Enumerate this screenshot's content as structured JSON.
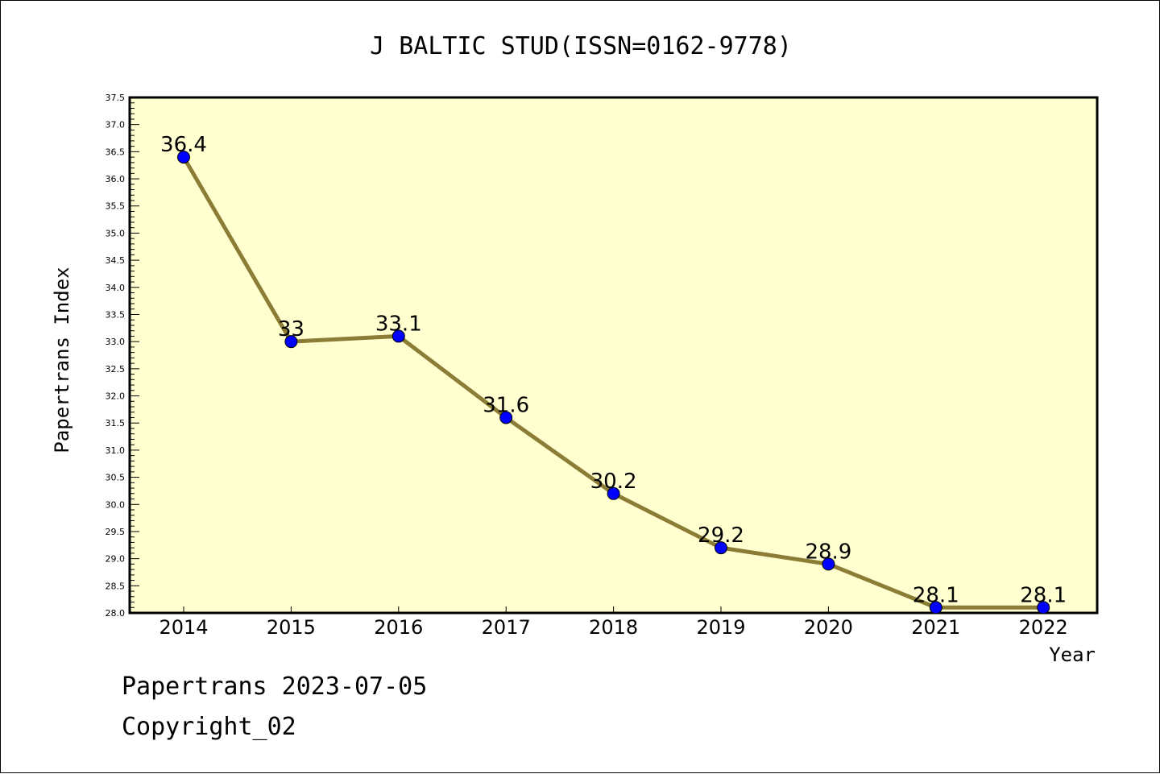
{
  "chart_data": {
    "type": "line",
    "title": "J BALTIC STUD(ISSN=0162-9778)",
    "xlabel": "Year",
    "ylabel": "Papertrans Index",
    "categories": [
      "2014",
      "2015",
      "2016",
      "2017",
      "2018",
      "2019",
      "2020",
      "2021",
      "2022"
    ],
    "series": [
      {
        "values": [
          36.4,
          33,
          33.1,
          31.6,
          30.2,
          29.2,
          28.9,
          28.1,
          28.1
        ],
        "labels": [
          "36.4",
          "33",
          "33.1",
          "31.6",
          "30.2",
          "29.2",
          "28.9",
          "28.1",
          "28.1"
        ]
      }
    ],
    "ylim": [
      28.0,
      37.5
    ],
    "yticks": [
      "28.0",
      "28.5",
      "29.0",
      "29.5",
      "30.0",
      "30.5",
      "31.0",
      "31.5",
      "32.0",
      "32.5",
      "33.0",
      "33.5",
      "34.0",
      "34.5",
      "35.0",
      "35.5",
      "36.0",
      "36.5",
      "37.0",
      "37.5"
    ],
    "grid": false,
    "line_color": "#8b7d35",
    "marker_color": "#0000ff",
    "plot_background": "#ffffd0"
  },
  "footer": {
    "line1": "Papertrans 2023-07-05",
    "line2": "Copyright_02"
  }
}
